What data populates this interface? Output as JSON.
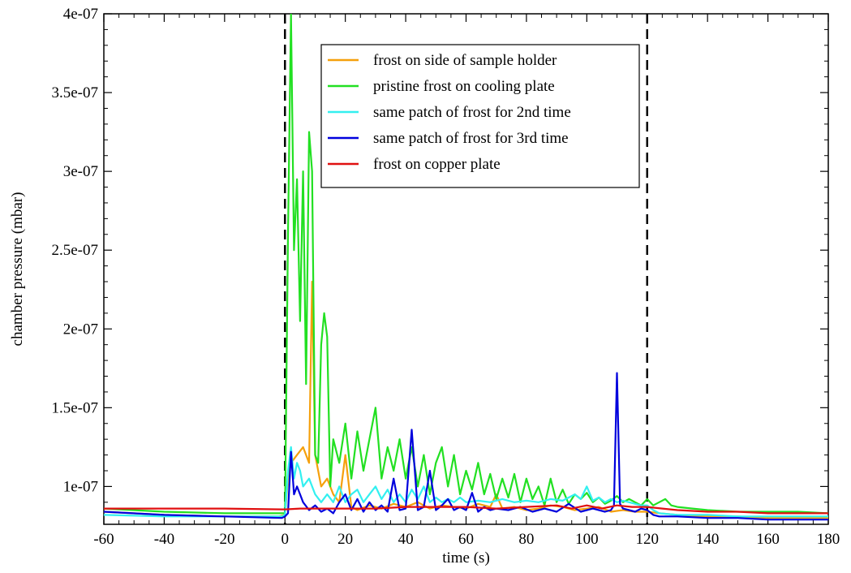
{
  "chart_data": {
    "type": "line",
    "xlabel": "time (s)",
    "ylabel": "chamber pressure (mbar)",
    "xlim": [
      -60,
      180
    ],
    "ylim": [
      7.6e-08,
      4e-07
    ],
    "x_ticks": [
      -60,
      -40,
      -20,
      0,
      20,
      40,
      60,
      80,
      100,
      120,
      140,
      160,
      180
    ],
    "x_tick_labels": [
      "-60",
      "-40",
      "-20",
      "0",
      "20",
      "40",
      "60",
      "80",
      "100",
      "120",
      "140",
      "160",
      "180"
    ],
    "y_ticks": [
      1e-07,
      1.5e-07,
      2e-07,
      2.5e-07,
      3e-07,
      3.5e-07,
      4e-07
    ],
    "y_tick_labels": [
      "1e-07",
      "1.5e-07",
      "2e-07",
      "2.5e-07",
      "3e-07",
      "3.5e-07",
      "4e-07"
    ],
    "grid": false,
    "legend_position": "top-center",
    "reference_lines": [
      {
        "axis": "x",
        "value": 0,
        "style": "dashed",
        "color": "#000000"
      },
      {
        "axis": "x",
        "value": 120,
        "style": "dashed",
        "color": "#000000"
      }
    ],
    "series": [
      {
        "name": "frost on side of sample holder",
        "color": "#f5a00c",
        "x": [
          -60,
          -40,
          -20,
          -2,
          0,
          1,
          2,
          4,
          6,
          8,
          9,
          10,
          12,
          14,
          16,
          18,
          20,
          22,
          24,
          28,
          32,
          36,
          40,
          44,
          48,
          52,
          56,
          60,
          64,
          68,
          70,
          72,
          76,
          80,
          84,
          88,
          92,
          96,
          100,
          104,
          108,
          112,
          116,
          120,
          124,
          130,
          140,
          150,
          160,
          170,
          180
        ],
        "y": [
          8.4e-08,
          8.2e-08,
          8.1e-08,
          8.1e-08,
          8.2e-08,
          1.05e-07,
          1.15e-07,
          1.2e-07,
          1.25e-07,
          1.15e-07,
          2.3e-07,
          1.2e-07,
          1e-07,
          1.05e-07,
          9.5e-08,
          9e-08,
          1.2e-07,
          8.7e-08,
          8.5e-08,
          8.8e-08,
          8.6e-08,
          8.9e-08,
          8.7e-08,
          9e-08,
          8.6e-08,
          8.8e-08,
          8.7e-08,
          8.6e-08,
          8.9e-08,
          8.7e-08,
          9.5e-08,
          8.6e-08,
          8.7e-08,
          8.5e-08,
          8.6e-08,
          8.8e-08,
          8.7e-08,
          8.5e-08,
          8.6e-08,
          8.7e-08,
          8.4e-08,
          8.5e-08,
          8.4e-08,
          8.4e-08,
          8.3e-08,
          8.2e-08,
          8.1e-08,
          8.1e-08,
          8e-08,
          8e-08,
          8e-08
        ]
      },
      {
        "name": "pristine frost on cooling plate",
        "color": "#22e022",
        "x": [
          -60,
          -40,
          -20,
          -1,
          0,
          1,
          2,
          3,
          4,
          5,
          6,
          7,
          8,
          9,
          10,
          11,
          12,
          13,
          14,
          15,
          16,
          18,
          20,
          22,
          24,
          26,
          28,
          30,
          32,
          34,
          36,
          38,
          40,
          42,
          44,
          46,
          48,
          50,
          52,
          54,
          56,
          58,
          60,
          62,
          64,
          66,
          68,
          70,
          72,
          74,
          76,
          78,
          80,
          82,
          84,
          86,
          88,
          90,
          92,
          94,
          96,
          98,
          100,
          102,
          104,
          106,
          108,
          110,
          112,
          114,
          116,
          118,
          120,
          122,
          124,
          126,
          128,
          130,
          135,
          140,
          150,
          160,
          170,
          180
        ],
        "y": [
          8.6e-08,
          8.4e-08,
          8.3e-08,
          8.3e-08,
          8.3e-08,
          2.6e-07,
          4e-07,
          2.5e-07,
          2.95e-07,
          2.05e-07,
          3e-07,
          1.65e-07,
          3.25e-07,
          3e-07,
          1.2e-07,
          1.15e-07,
          1.9e-07,
          2.1e-07,
          1.95e-07,
          1e-07,
          1.3e-07,
          1.15e-07,
          1.4e-07,
          1.05e-07,
          1.35e-07,
          1.1e-07,
          1.3e-07,
          1.5e-07,
          1.05e-07,
          1.25e-07,
          1.1e-07,
          1.3e-07,
          1.05e-07,
          1.25e-07,
          1e-07,
          1.2e-07,
          9.5e-08,
          1.15e-07,
          1.25e-07,
          1e-07,
          1.2e-07,
          9.5e-08,
          1.1e-07,
          9.8e-08,
          1.15e-07,
          9.5e-08,
          1.08e-07,
          9.2e-08,
          1.05e-07,
          9.3e-08,
          1.08e-07,
          9e-08,
          1.05e-07,
          9.2e-08,
          1e-07,
          8.8e-08,
          1.05e-07,
          9e-08,
          9.8e-08,
          8.9e-08,
          9.5e-08,
          9.2e-08,
          9.6e-08,
          9e-08,
          9.3e-08,
          8.9e-08,
          9.1e-08,
          9.4e-08,
          9e-08,
          9.2e-08,
          9e-08,
          8.8e-08,
          9.2e-08,
          8.8e-08,
          9e-08,
          9.2e-08,
          8.8e-08,
          8.7e-08,
          8.6e-08,
          8.5e-08,
          8.4e-08,
          8.4e-08,
          8.4e-08,
          8.3e-08
        ]
      },
      {
        "name": "same patch of frost for 2nd time",
        "color": "#33f0f0",
        "x": [
          -60,
          -40,
          -20,
          -1,
          0,
          1,
          2,
          3,
          4,
          5,
          6,
          8,
          10,
          12,
          14,
          16,
          18,
          20,
          22,
          24,
          26,
          28,
          30,
          32,
          34,
          36,
          38,
          40,
          42,
          44,
          46,
          48,
          50,
          52,
          54,
          56,
          58,
          60,
          64,
          68,
          72,
          76,
          80,
          84,
          88,
          92,
          96,
          98,
          100,
          102,
          104,
          106,
          108,
          110,
          112,
          114,
          116,
          118,
          120,
          122,
          124,
          130,
          140,
          150,
          160,
          170,
          180
        ],
        "y": [
          8.2e-08,
          8.1e-08,
          8.1e-08,
          8.1e-08,
          8.2e-08,
          1.1e-07,
          1.25e-07,
          1.05e-07,
          1.15e-07,
          1.1e-07,
          1e-07,
          1.05e-07,
          9.5e-08,
          9e-08,
          9.5e-08,
          9e-08,
          1e-07,
          9e-08,
          9.5e-08,
          9.8e-08,
          9e-08,
          9.5e-08,
          1e-07,
          9.2e-08,
          9.8e-08,
          9e-08,
          9.5e-08,
          9e-08,
          9.8e-08,
          9.2e-08,
          1e-07,
          9e-08,
          9.3e-08,
          9e-08,
          9.2e-08,
          9e-08,
          9.3e-08,
          9e-08,
          9.1e-08,
          9e-08,
          9.2e-08,
          9e-08,
          9.1e-08,
          9e-08,
          9.2e-08,
          9.1e-08,
          9.5e-08,
          9.2e-08,
          1e-07,
          9.1e-08,
          9.3e-08,
          9e-08,
          9.2e-08,
          9e-08,
          9.1e-08,
          9e-08,
          8.9e-08,
          8.8e-08,
          8.8e-08,
          8.5e-08,
          8.3e-08,
          8.2e-08,
          8.2e-08,
          8.1e-08,
          8.1e-08,
          8.1e-08,
          8.1e-08
        ]
      },
      {
        "name": "same patch of frost for 3rd time",
        "color": "#0000dd",
        "x": [
          -60,
          -40,
          -20,
          -1,
          0,
          1,
          2,
          3,
          4,
          5,
          6,
          8,
          10,
          12,
          14,
          16,
          18,
          20,
          22,
          24,
          26,
          28,
          30,
          32,
          34,
          36,
          38,
          40,
          42,
          44,
          46,
          48,
          50,
          52,
          54,
          56,
          58,
          60,
          62,
          64,
          66,
          68,
          70,
          74,
          78,
          82,
          86,
          90,
          94,
          98,
          102,
          106,
          108,
          109,
          110,
          111,
          112,
          114,
          116,
          118,
          120,
          122,
          124,
          130,
          140,
          150,
          160,
          170,
          180
        ],
        "y": [
          8.4e-08,
          8.2e-08,
          8.1e-08,
          8e-08,
          8.1e-08,
          8.3e-08,
          1.22e-07,
          9.5e-08,
          1e-07,
          9.5e-08,
          9e-08,
          8.5e-08,
          8.8e-08,
          8.4e-08,
          8.6e-08,
          8.3e-08,
          9e-08,
          9.5e-08,
          8.5e-08,
          9.2e-08,
          8.4e-08,
          9e-08,
          8.5e-08,
          8.8e-08,
          8.4e-08,
          1.05e-07,
          8.5e-08,
          8.6e-08,
          1.36e-07,
          8.5e-08,
          8.7e-08,
          1.1e-07,
          8.5e-08,
          8.8e-08,
          9.2e-08,
          8.5e-08,
          8.7e-08,
          8.5e-08,
          9.6e-08,
          8.4e-08,
          8.7e-08,
          8.5e-08,
          8.6e-08,
          8.5e-08,
          8.7e-08,
          8.4e-08,
          8.6e-08,
          8.4e-08,
          8.9e-08,
          8.4e-08,
          8.6e-08,
          8.4e-08,
          8.5e-08,
          8.8e-08,
          1.72e-07,
          8.9e-08,
          8.6e-08,
          8.5e-08,
          8.4e-08,
          8.6e-08,
          8.5e-08,
          8.2e-08,
          8.1e-08,
          8.1e-08,
          8e-08,
          8e-08,
          7.9e-08,
          7.9e-08,
          7.9e-08
        ]
      },
      {
        "name": "frost on copper plate",
        "color": "#e01010",
        "x": [
          -60,
          -40,
          -20,
          -1,
          0,
          5,
          10,
          20,
          30,
          40,
          50,
          60,
          70,
          80,
          90,
          95,
          100,
          105,
          110,
          115,
          120,
          125,
          130,
          140,
          150,
          160,
          170,
          180
        ],
        "y": [
          8.6e-08,
          8.6e-08,
          8.6e-08,
          8.55e-08,
          8.55e-08,
          8.6e-08,
          8.6e-08,
          8.6e-08,
          8.6e-08,
          8.7e-08,
          8.7e-08,
          8.7e-08,
          8.6e-08,
          8.7e-08,
          8.8e-08,
          8.6e-08,
          8.8e-08,
          8.6e-08,
          8.8e-08,
          8.7e-08,
          8.7e-08,
          8.6e-08,
          8.5e-08,
          8.4e-08,
          8.4e-08,
          8.3e-08,
          8.3e-08,
          8.3e-08
        ]
      }
    ]
  }
}
